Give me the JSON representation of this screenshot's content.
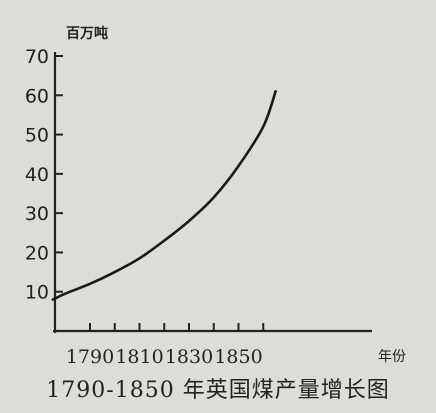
{
  "chart_data": {
    "type": "line",
    "title": "1790-1850 年英国煤产量增长图",
    "ylabel": "百万吨",
    "xlabel": "年份",
    "ylim": [
      0,
      70
    ],
    "yticks": [
      10,
      20,
      30,
      40,
      50,
      60,
      70
    ],
    "xticks": [
      1790,
      1810,
      1830,
      1850
    ],
    "series": [
      {
        "x": [
          1775,
          1780,
          1790,
          1800,
          1810,
          1820,
          1830,
          1840,
          1850,
          1860,
          1865
        ],
        "values": [
          8,
          9.5,
          12,
          15,
          18.5,
          23,
          28,
          34,
          42,
          52,
          61
        ]
      }
    ]
  },
  "colors": {
    "background": "#dcdcda",
    "axis": "#222222",
    "line": "#1a1a1a"
  }
}
